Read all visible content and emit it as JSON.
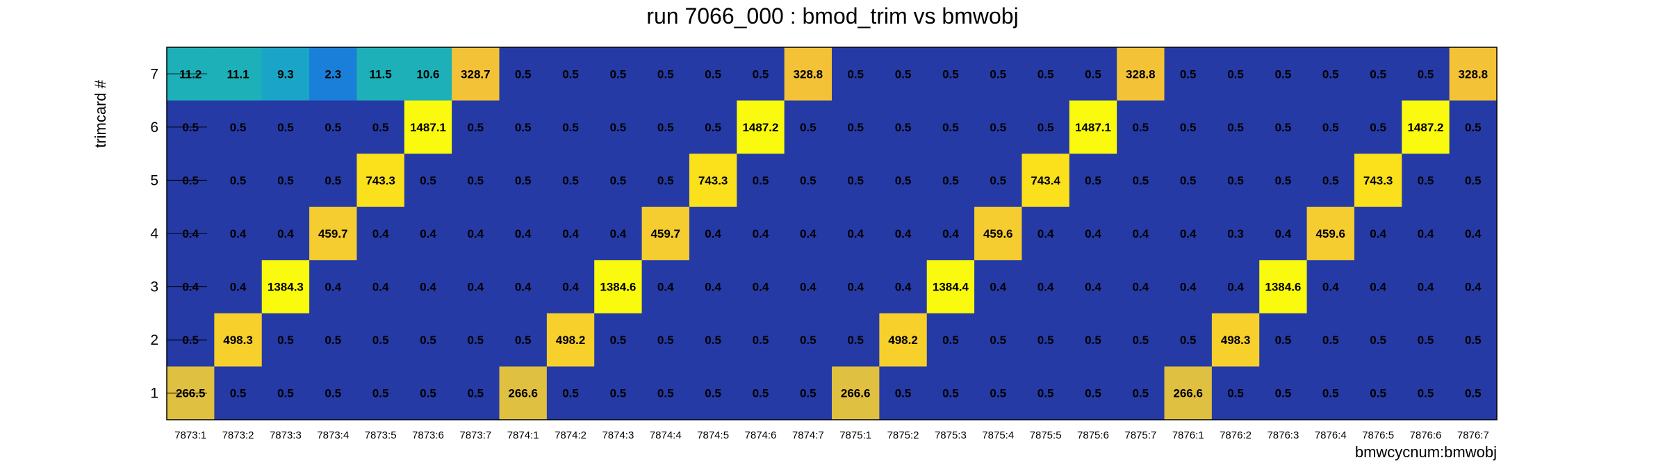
{
  "chart_data": {
    "type": "heatmap",
    "title": "run 7066_000 : bmod_trim vs bmwobj",
    "xlabel": "bmwcycnum:bmwobj",
    "ylabel": "trimcard #",
    "x_categories": [
      "7873:1",
      "7873:2",
      "7873:3",
      "7873:4",
      "7873:5",
      "7873:6",
      "7873:7",
      "7874:1",
      "7874:2",
      "7874:3",
      "7874:4",
      "7874:5",
      "7874:6",
      "7874:7",
      "7875:1",
      "7875:2",
      "7875:3",
      "7875:4",
      "7875:5",
      "7875:6",
      "7875:7",
      "7876:1",
      "7876:2",
      "7876:3",
      "7876:4",
      "7876:5",
      "7876:6",
      "7876:7"
    ],
    "y_categories": [
      "1",
      "2",
      "3",
      "4",
      "5",
      "6",
      "7"
    ],
    "rows": [
      {
        "y": "7",
        "values": [
          "11.2",
          "11.1",
          "9.3",
          "2.3",
          "11.5",
          "10.6",
          "328.7",
          "0.5",
          "0.5",
          "0.5",
          "0.5",
          "0.5",
          "0.5",
          "328.8",
          "0.5",
          "0.5",
          "0.5",
          "0.5",
          "0.5",
          "0.5",
          "328.8",
          "0.5",
          "0.5",
          "0.5",
          "0.5",
          "0.5",
          "0.5",
          "328.8"
        ]
      },
      {
        "y": "6",
        "values": [
          "0.5",
          "0.5",
          "0.5",
          "0.5",
          "0.5",
          "1487.1",
          "0.5",
          "0.5",
          "0.5",
          "0.5",
          "0.5",
          "0.5",
          "1487.2",
          "0.5",
          "0.5",
          "0.5",
          "0.5",
          "0.5",
          "0.5",
          "1487.1",
          "0.5",
          "0.5",
          "0.5",
          "0.5",
          "0.5",
          "0.5",
          "1487.2",
          "0.5"
        ]
      },
      {
        "y": "5",
        "values": [
          "0.5",
          "0.5",
          "0.5",
          "0.5",
          "743.3",
          "0.5",
          "0.5",
          "0.5",
          "0.5",
          "0.5",
          "0.5",
          "743.3",
          "0.5",
          "0.5",
          "0.5",
          "0.5",
          "0.5",
          "0.5",
          "743.4",
          "0.5",
          "0.5",
          "0.5",
          "0.5",
          "0.5",
          "0.5",
          "743.3",
          "0.5",
          "0.5"
        ]
      },
      {
        "y": "4",
        "values": [
          "0.4",
          "0.4",
          "0.4",
          "459.7",
          "0.4",
          "0.4",
          "0.4",
          "0.4",
          "0.4",
          "0.4",
          "459.7",
          "0.4",
          "0.4",
          "0.4",
          "0.4",
          "0.4",
          "0.4",
          "459.6",
          "0.4",
          "0.4",
          "0.4",
          "0.4",
          "0.3",
          "0.4",
          "459.6",
          "0.4",
          "0.4",
          "0.4"
        ]
      },
      {
        "y": "3",
        "values": [
          "0.4",
          "0.4",
          "1384.3",
          "0.4",
          "0.4",
          "0.4",
          "0.4",
          "0.4",
          "0.4",
          "1384.6",
          "0.4",
          "0.4",
          "0.4",
          "0.4",
          "0.4",
          "0.4",
          "1384.4",
          "0.4",
          "0.4",
          "0.4",
          "0.4",
          "0.4",
          "0.4",
          "1384.6",
          "0.4",
          "0.4",
          "0.4",
          "0.4"
        ]
      },
      {
        "y": "2",
        "values": [
          "0.5",
          "498.3",
          "0.5",
          "0.5",
          "0.5",
          "0.5",
          "0.5",
          "0.5",
          "498.2",
          "0.5",
          "0.5",
          "0.5",
          "0.5",
          "0.5",
          "0.5",
          "498.2",
          "0.5",
          "0.5",
          "0.5",
          "0.5",
          "0.5",
          "0.5",
          "498.3",
          "0.5",
          "0.5",
          "0.5",
          "0.5",
          "0.5"
        ]
      },
      {
        "y": "1",
        "values": [
          "266.5",
          "0.5",
          "0.5",
          "0.5",
          "0.5",
          "0.5",
          "0.5",
          "266.6",
          "0.5",
          "0.5",
          "0.5",
          "0.5",
          "0.5",
          "0.5",
          "266.6",
          "0.5",
          "0.5",
          "0.5",
          "0.5",
          "0.5",
          "0.5",
          "266.6",
          "0.5",
          "0.5",
          "0.5",
          "0.5",
          "0.5",
          "0.5"
        ]
      }
    ],
    "colors": {
      "low": "#253aa5",
      "v2": "#1a7fd8",
      "v9": "#1aa5c8",
      "v11": "#1db0b8",
      "v266": "#e0c040",
      "v328": "#f3c237",
      "v459": "#f5cd30",
      "v498": "#f8d02c",
      "v743": "#fbe01c",
      "v1384": "#fafa0e",
      "v1487": "#fafa0e"
    }
  }
}
